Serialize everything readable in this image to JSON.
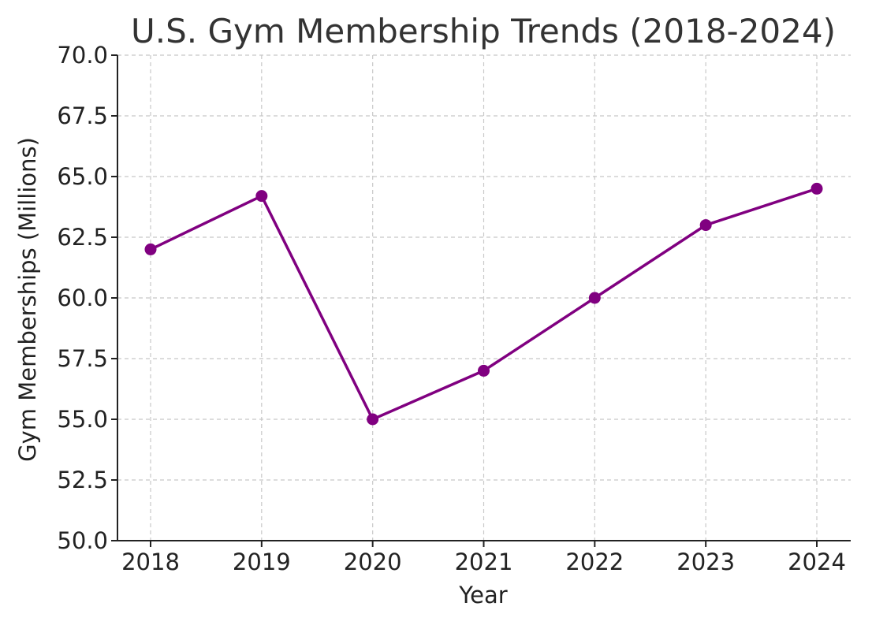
{
  "chart_data": {
    "type": "line",
    "title": "U.S. Gym Membership Trends (2018-2024)",
    "xlabel": "Year",
    "ylabel": "Gym Memberships (Millions)",
    "x": [
      "2018",
      "2019",
      "2020",
      "2021",
      "2022",
      "2023",
      "2024"
    ],
    "series": [
      {
        "values": [
          62.0,
          64.2,
          55.0,
          57.0,
          60.0,
          63.0,
          64.5
        ]
      }
    ],
    "ylim": [
      50.0,
      70.0
    ],
    "yticks": [
      "50.0",
      "52.5",
      "55.0",
      "57.5",
      "60.0",
      "62.5",
      "65.0",
      "67.5",
      "70.0"
    ],
    "grid": true,
    "line_color": "#800080",
    "marker": "circle"
  }
}
